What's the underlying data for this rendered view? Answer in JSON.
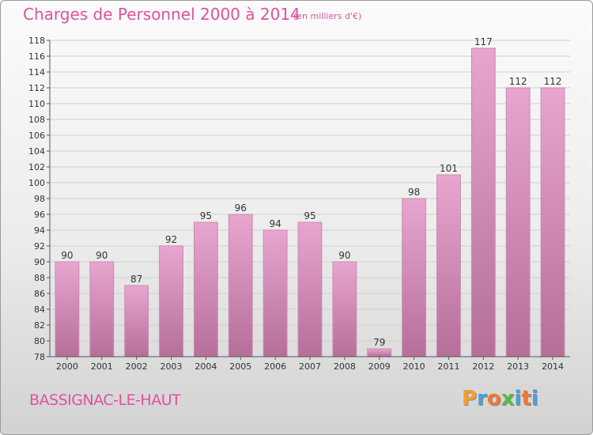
{
  "title": "Charges de Personnel 2000 à 2014",
  "subtitle": "(en milliers d'€)",
  "commune": "BASSIGNAC-LE-HAUT",
  "logo": {
    "p": "P",
    "r": "r",
    "o": "o",
    "x": "x",
    "i": "i",
    "t": "t",
    "i2": "i"
  },
  "colors": {
    "accent": "#e0529e",
    "bar_top": "#e8a6cf",
    "bar_bottom": "#b56f98"
  },
  "chart_data": {
    "type": "bar",
    "title": "Charges de Personnel 2000 à 2014",
    "subtitle": "(en milliers d'€)",
    "categories": [
      "2000",
      "2001",
      "2002",
      "2003",
      "2004",
      "2005",
      "2006",
      "2007",
      "2008",
      "2009",
      "2010",
      "2011",
      "2012",
      "2013",
      "2014"
    ],
    "values": [
      90,
      90,
      87,
      92,
      95,
      96,
      94,
      95,
      90,
      79,
      98,
      101,
      117,
      112,
      112
    ],
    "ylim": [
      78,
      118
    ],
    "yticks": [
      78,
      80,
      82,
      84,
      86,
      88,
      90,
      92,
      94,
      96,
      98,
      100,
      102,
      104,
      106,
      108,
      110,
      112,
      114,
      116,
      118
    ],
    "grid": true,
    "legend": "none"
  }
}
